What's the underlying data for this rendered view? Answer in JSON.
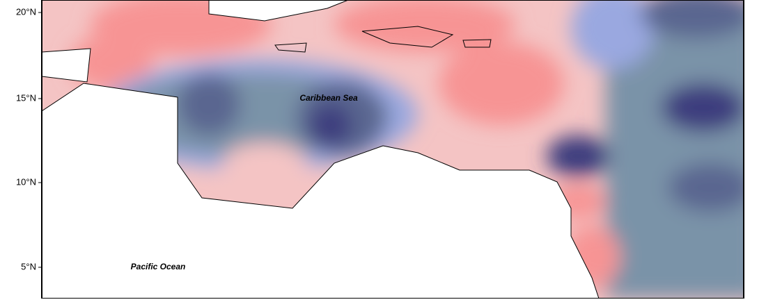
{
  "axis": {
    "lat_labels": [
      "20°N",
      "15°N",
      "10°N",
      "5°N"
    ]
  },
  "labels": {
    "sea": "Caribbean Sea",
    "ocean": "Pacific Ocean"
  }
}
